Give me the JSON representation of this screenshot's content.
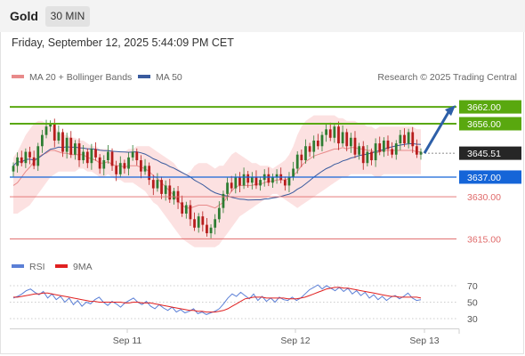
{
  "header": {
    "symbol": "Gold",
    "timeframe": "30 MIN",
    "datetime": "Friday, September 12, 2025 5:44:09 PM CET"
  },
  "legend": {
    "ma20_bb": "MA 20 + Bollinger Bands",
    "ma50": "MA 50",
    "copyright": "Research © 2025 Trading Central",
    "rsi": "RSI",
    "rsi_ma": "9MA"
  },
  "colors": {
    "candle_up": "#2e7d32",
    "candle_down": "#b71c1c",
    "bollinger_fill": "#fcdcdc",
    "ma20": "#e88a8a",
    "ma50": "#3a5b9e",
    "resistance": "#59a80f",
    "pivot": "#1565d8",
    "support": "#e06a6a",
    "forecast_arrow": "#2d5fa8",
    "rsi": "#5b7fd6",
    "rsi_ma": "#e02020"
  },
  "chart_data": [
    {
      "type": "candlestick",
      "title": "",
      "x_tick_labels": [
        "Sep 11",
        "Sep 12",
        "Sep 13"
      ],
      "ylim": [
        3611,
        3669
      ],
      "current_price": 3645.51,
      "levels": [
        {
          "label": "3662.00",
          "value": 3662.0,
          "kind": "resistance"
        },
        {
          "label": "3656.00",
          "value": 3656.0,
          "kind": "resistance"
        },
        {
          "label": "3645.51",
          "value": 3645.51,
          "kind": "last-price"
        },
        {
          "label": "3637.00",
          "value": 3637.0,
          "kind": "pivot"
        },
        {
          "label": "3630.00",
          "value": 3630.0,
          "kind": "support"
        },
        {
          "label": "3615.00",
          "value": 3615.0,
          "kind": "support"
        }
      ],
      "forecast": {
        "from": 3645.5,
        "to": 3662.0
      },
      "candle_closes": [
        3641,
        3644,
        3642,
        3646,
        3644,
        3641,
        3648,
        3652,
        3655,
        3656,
        3650,
        3653,
        3646,
        3651,
        3645,
        3649,
        3643,
        3646,
        3642,
        3647,
        3644,
        3640,
        3643,
        3646,
        3641,
        3638,
        3642,
        3640,
        3644,
        3646,
        3643,
        3639,
        3641,
        3636,
        3633,
        3636,
        3631,
        3634,
        3629,
        3632,
        3628,
        3624,
        3627,
        3622,
        3619,
        3623,
        3620,
        3617,
        3619,
        3622,
        3626,
        3631,
        3635,
        3633,
        3637,
        3634,
        3638,
        3635,
        3637,
        3634,
        3636,
        3638,
        3635,
        3637,
        3638,
        3636,
        3634,
        3637,
        3640,
        3645,
        3643,
        3648,
        3646,
        3650,
        3648,
        3652,
        3654,
        3651,
        3655,
        3649,
        3653,
        3648,
        3651,
        3645,
        3648,
        3642,
        3646,
        3643,
        3649,
        3646,
        3650,
        3647,
        3645,
        3649,
        3652,
        3649,
        3653,
        3648,
        3645,
        3646
      ],
      "bollinger": {
        "upper": [
          3644,
          3646,
          3649,
          3652,
          3654,
          3656,
          3657,
          3657,
          3656,
          3656,
          3655,
          3653,
          3652,
          3652,
          3651,
          3651,
          3650,
          3650,
          3649,
          3648,
          3648,
          3647,
          3647,
          3647,
          3646,
          3646,
          3646,
          3646,
          3647,
          3647,
          3648,
          3648,
          3648,
          3648,
          3647,
          3646,
          3645,
          3644,
          3643,
          3642,
          3640,
          3639,
          3638,
          3639,
          3641,
          3642,
          3642,
          3642,
          3641,
          3640,
          3641,
          3641,
          3643,
          3645,
          3646,
          3645,
          3644,
          3643,
          3642,
          3642,
          3641,
          3641,
          3641,
          3640,
          3641,
          3642,
          3643,
          3645,
          3648,
          3652,
          3655,
          3657,
          3658,
          3659,
          3659,
          3659,
          3659,
          3659,
          3659,
          3658,
          3658,
          3657,
          3657,
          3657,
          3656,
          3656,
          3655,
          3655,
          3654,
          3655,
          3655,
          3655,
          3655,
          3655,
          3655,
          3655,
          3655,
          3655,
          3654,
          3654
        ],
        "lower": [
          3624,
          3624,
          3625,
          3626,
          3627,
          3629,
          3631,
          3633,
          3635,
          3637,
          3638,
          3639,
          3639,
          3639,
          3639,
          3639,
          3640,
          3640,
          3639,
          3639,
          3638,
          3637,
          3637,
          3638,
          3637,
          3636,
          3636,
          3635,
          3635,
          3635,
          3634,
          3633,
          3632,
          3630,
          3628,
          3627,
          3625,
          3623,
          3621,
          3619,
          3617,
          3615,
          3614,
          3613,
          3612,
          3612,
          3612,
          3612,
          3612,
          3612,
          3613,
          3615,
          3617,
          3619,
          3621,
          3623,
          3624,
          3625,
          3626,
          3627,
          3628,
          3629,
          3630,
          3631,
          3631,
          3630,
          3629,
          3628,
          3627,
          3626,
          3627,
          3628,
          3629,
          3630,
          3631,
          3632,
          3633,
          3634,
          3635,
          3636,
          3637,
          3637,
          3638,
          3638,
          3638,
          3638,
          3638,
          3638,
          3637,
          3637,
          3638,
          3638,
          3638,
          3638,
          3638,
          3638,
          3638,
          3638,
          3638,
          3638
        ]
      },
      "rsi_panel": {
        "ticks": [
          70,
          50,
          30
        ],
        "rsi": [
          55,
          57,
          60,
          64,
          66,
          62,
          59,
          63,
          55,
          60,
          53,
          57,
          50,
          55,
          47,
          52,
          45,
          50,
          48,
          53,
          56,
          50,
          46,
          51,
          48,
          44,
          49,
          52,
          55,
          50,
          47,
          51,
          45,
          42,
          47,
          43,
          40,
          44,
          38,
          41,
          37,
          39,
          42,
          36,
          38,
          35,
          37,
          39,
          42,
          48,
          55,
          60,
          57,
          62,
          58,
          54,
          60,
          52,
          57,
          51,
          55,
          50,
          56,
          53,
          52,
          56,
          52,
          55,
          60,
          65,
          68,
          71,
          66,
          70,
          67,
          64,
          68,
          63,
          67,
          60,
          64,
          58,
          62,
          55,
          59,
          53,
          57,
          52,
          56,
          58,
          54,
          57,
          61,
          55,
          52,
          53
        ],
        "ma": [
          56,
          56,
          57,
          58,
          59,
          60,
          60,
          61,
          61,
          60,
          59,
          58,
          57,
          56,
          55,
          54,
          53,
          52,
          51,
          51,
          50,
          50,
          50,
          50,
          50,
          50,
          49,
          49,
          50,
          50,
          49,
          49,
          49,
          48,
          47,
          46,
          45,
          44,
          43,
          42,
          41,
          40,
          40,
          39,
          39,
          38,
          38,
          38,
          39,
          40,
          42,
          45,
          48,
          51,
          54,
          55,
          56,
          56,
          56,
          55,
          55,
          55,
          55,
          55,
          54,
          54,
          54,
          55,
          56,
          58,
          60,
          62,
          64,
          66,
          67,
          68,
          68,
          67,
          67,
          66,
          65,
          64,
          63,
          62,
          61,
          60,
          59,
          58,
          57,
          57,
          56,
          56,
          56,
          56,
          56,
          55
        ]
      }
    }
  ]
}
